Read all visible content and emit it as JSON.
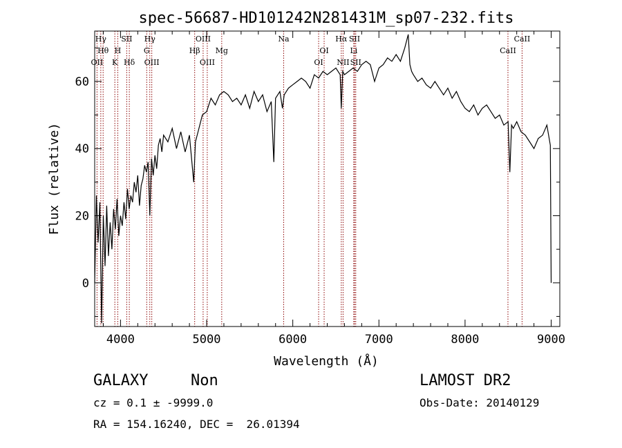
{
  "chart_data": {
    "type": "line",
    "title": "spec-56687-HD101242N281431M_sp07-232.fits",
    "xlabel": "Wavelength (Å)",
    "ylabel": "Flux (relative)",
    "xlim": [
      3700,
      9100
    ],
    "ylim": [
      -13,
      75
    ],
    "x_ticks": [
      4000,
      5000,
      6000,
      7000,
      8000,
      9000
    ],
    "y_ticks": [
      0,
      20,
      40,
      60
    ],
    "line_color": "#000000",
    "marker_color": "#8b0000",
    "series": [
      {
        "x": [
          3700,
          3720,
          3740,
          3760,
          3780,
          3800,
          3820,
          3840,
          3860,
          3880,
          3900,
          3920,
          3940,
          3960,
          3980,
          4000,
          4020,
          4040,
          4060,
          4080,
          4100,
          4120,
          4140,
          4160,
          4180,
          4200,
          4220,
          4240,
          4260,
          4280,
          4300,
          4320,
          4340,
          4360,
          4380,
          4400,
          4420,
          4440,
          4460,
          4480,
          4500,
          4550,
          4600,
          4650,
          4700,
          4750,
          4800,
          4850,
          4870,
          4900,
          4950,
          5000,
          5050,
          5100,
          5150,
          5200,
          5250,
          5300,
          5350,
          5400,
          5450,
          5500,
          5550,
          5600,
          5650,
          5700,
          5750,
          5780,
          5800,
          5850,
          5880,
          5900,
          5950,
          6000,
          6050,
          6100,
          6150,
          6200,
          6250,
          6300,
          6350,
          6400,
          6450,
          6500,
          6550,
          6563,
          6580,
          6600,
          6650,
          6700,
          6750,
          6800,
          6850,
          6900,
          6950,
          7000,
          7050,
          7100,
          7150,
          7200,
          7250,
          7300,
          7340,
          7360,
          7380,
          7400,
          7450,
          7500,
          7550,
          7600,
          7650,
          7700,
          7750,
          7800,
          7850,
          7900,
          7950,
          8000,
          8050,
          8100,
          8150,
          8200,
          8250,
          8300,
          8350,
          8400,
          8450,
          8500,
          8520,
          8540,
          8560,
          8600,
          8650,
          8700,
          8750,
          8800,
          8850,
          8900,
          8950,
          8990,
          9000
        ],
        "y": [
          0,
          26,
          12,
          24,
          -12,
          20,
          5,
          23,
          8,
          18,
          10,
          22,
          16,
          25,
          14,
          20,
          17,
          24,
          19,
          28,
          22,
          26,
          24,
          30,
          27,
          32,
          23,
          29,
          31,
          35,
          33,
          36,
          20,
          37,
          32,
          38,
          34,
          41,
          43,
          39,
          44,
          42,
          46,
          40,
          45,
          39,
          44,
          30,
          42,
          45,
          50,
          51,
          55,
          53,
          56,
          57,
          56,
          54,
          55,
          53,
          56,
          52,
          57,
          54,
          56,
          51,
          54,
          36,
          55,
          57,
          52,
          56,
          58,
          59,
          60,
          61,
          60,
          58,
          62,
          61,
          63,
          62,
          63,
          64,
          62,
          52,
          63,
          62,
          63,
          64,
          63,
          65,
          66,
          65,
          60,
          64,
          65,
          67,
          66,
          68,
          66,
          70,
          74,
          65,
          63,
          62,
          60,
          61,
          59,
          58,
          60,
          58,
          56,
          58,
          55,
          57,
          54,
          52,
          51,
          53,
          50,
          52,
          53,
          51,
          49,
          50,
          47,
          48,
          33,
          47,
          46,
          48,
          45,
          44,
          42,
          40,
          43,
          44,
          47,
          41,
          0
        ]
      }
    ],
    "line_markers": [
      {
        "label": "Hγ",
        "x": 3771,
        "row": 0
      },
      {
        "label": "Hθ",
        "x": 3798,
        "row": 1
      },
      {
        "label": "OII",
        "x": 3727,
        "row": 2
      },
      {
        "label": "SII",
        "x": 4072,
        "row": 0
      },
      {
        "label": "H",
        "x": 3968,
        "row": 1
      },
      {
        "label": "K",
        "x": 3934,
        "row": 2
      },
      {
        "label": "Hδ",
        "x": 4102,
        "row": 2
      },
      {
        "label": "Hγ",
        "x": 4340,
        "row": 0
      },
      {
        "label": "G",
        "x": 4304,
        "row": 1
      },
      {
        "label": "OIII",
        "x": 4363,
        "row": 2
      },
      {
        "label": "OIII",
        "x": 4959,
        "row": 0
      },
      {
        "label": "Hβ",
        "x": 4861,
        "row": 1
      },
      {
        "label": "OIII",
        "x": 5007,
        "row": 2
      },
      {
        "label": "Mg",
        "x": 5175,
        "row": 1
      },
      {
        "label": "Na",
        "x": 5894,
        "row": 0
      },
      {
        "label": "OI",
        "x": 6364,
        "row": 1
      },
      {
        "label": "OI",
        "x": 6300,
        "row": 2
      },
      {
        "label": "Hα",
        "x": 6563,
        "row": 0
      },
      {
        "label": "SII",
        "x": 6717,
        "row": 0
      },
      {
        "label": "Li",
        "x": 6708,
        "row": 1
      },
      {
        "label": "NII",
        "x": 6584,
        "row": 2
      },
      {
        "label": "SII",
        "x": 6731,
        "row": 2
      },
      {
        "label": "CaII",
        "x": 8662,
        "row": 0
      },
      {
        "label": "CaII",
        "x": 8498,
        "row": 1
      }
    ]
  },
  "info": {
    "class": "GALAXY",
    "subclass": "Non",
    "survey": "LAMOST DR2",
    "cz": "cz = 0.1 ± -9999.0",
    "obs_date": "Obs-Date: 20140129",
    "radec": "RA = 154.16240, DEC =  26.01394"
  }
}
